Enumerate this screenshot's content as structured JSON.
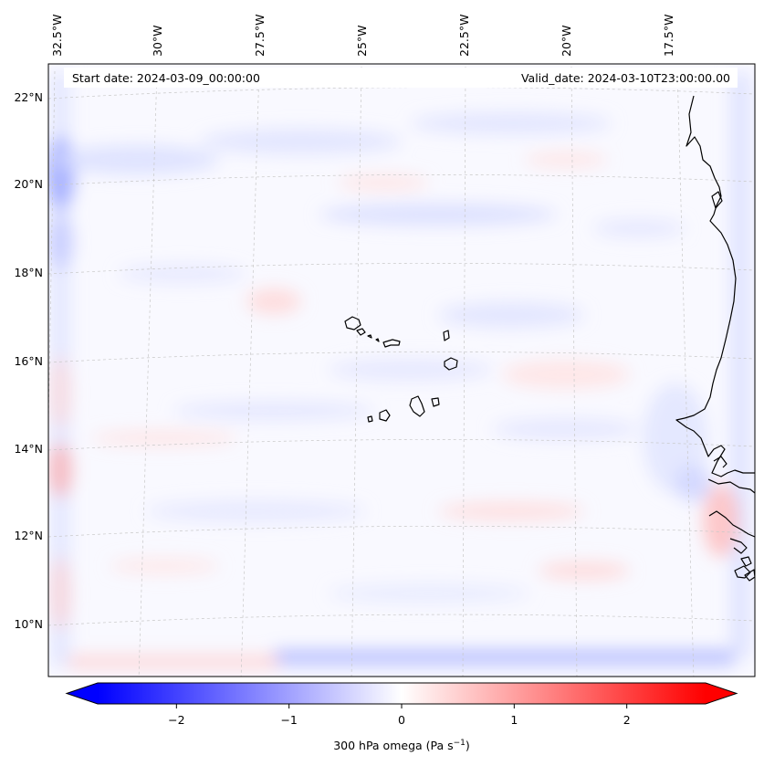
{
  "map": {
    "start_date": "Start date: 2024-03-09_00:00:00",
    "valid_date": "Valid_date: 2024-03-10T23:00:00.00",
    "lon_labels": [
      "32.5°W",
      "30°W",
      "27.5°W",
      "25°W",
      "22.5°W",
      "20°W",
      "17.5°W"
    ],
    "lat_labels": [
      "22°N",
      "20°N",
      "18°N",
      "16°N",
      "14°N",
      "12°N",
      "10°N"
    ]
  },
  "colorbar": {
    "label_text": "300 hPa omega (Pa s",
    "label_exponent": "−1",
    "label_close": ")",
    "ticks": [
      "−2",
      "−1",
      "0",
      "1",
      "2"
    ],
    "range": [
      -2.7,
      2.7
    ],
    "colormap": "bwr",
    "extend": "both",
    "color_min": "#0000ff",
    "color_mid": "#ffffff",
    "color_max": "#ff0000"
  }
}
